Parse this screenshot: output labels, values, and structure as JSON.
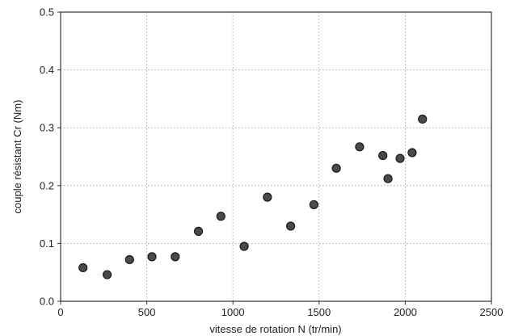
{
  "chart_data": {
    "type": "scatter",
    "title": "",
    "xlabel": "vitesse de rotation N (tr/min)",
    "ylabel": "couple résistant Cr (Nm)",
    "xlim": [
      0,
      2500
    ],
    "ylim": [
      0.0,
      0.5
    ],
    "grid": true,
    "xticks": [
      0,
      500,
      1000,
      1500,
      2000,
      2500
    ],
    "xtick_labels": [
      "0",
      "500",
      "1000",
      "1500",
      "2000",
      "2500"
    ],
    "yticks": [
      0.0,
      0.1,
      0.2,
      0.3,
      0.4,
      0.5
    ],
    "ytick_labels": [
      "0.0",
      "0.1",
      "0.2",
      "0.3",
      "0.4",
      "0.5"
    ],
    "series": [
      {
        "x": [
          130,
          270,
          400,
          530,
          665,
          800,
          930,
          1065,
          1200,
          1335,
          1470,
          1600,
          1735,
          1870,
          1900,
          1970,
          2040,
          2100
        ],
        "y": [
          0.058,
          0.046,
          0.072,
          0.077,
          0.077,
          0.121,
          0.147,
          0.095,
          0.18,
          0.13,
          0.167,
          0.23,
          0.267,
          0.252,
          0.212,
          0.247,
          0.257,
          0.315
        ]
      }
    ],
    "point_color": "#4a4a4a"
  }
}
